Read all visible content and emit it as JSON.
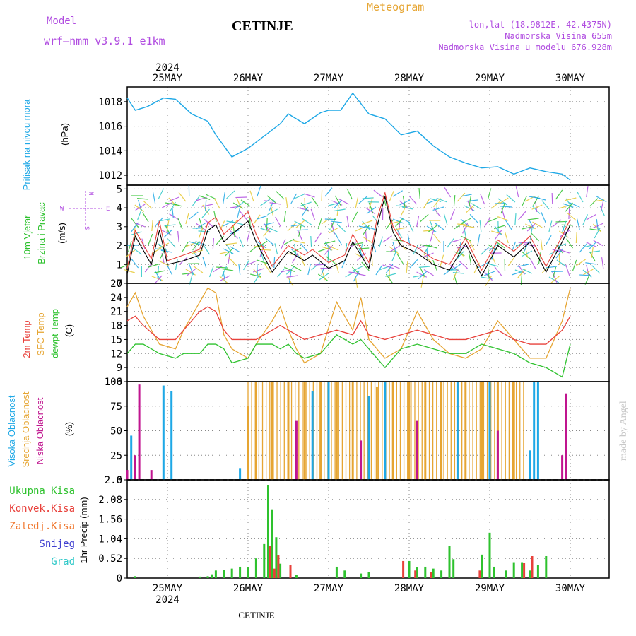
{
  "header": {
    "model_label": "Model",
    "model_name": "wrf–nmm_v3.9.1  e1km",
    "title": "CETINJE",
    "meteogram_label": "Meteogram",
    "coords": "lon,lat (18.9812E, 42.4375N)",
    "elevation": "Nadmorska Visina 655m",
    "model_elevation": "Nadmorska Visina u modelu 676.928m",
    "footer": "CETINJE",
    "watermark": "made by Angel"
  },
  "colors": {
    "pressure": "#1ea8e6",
    "temp2m": "#e8413b",
    "sfc": "#e6a532",
    "dew": "#2ec22e",
    "wind_green": "#2ec22e",
    "low_cloud": "#c0158f",
    "mid_cloud": "#e6a532",
    "high_cloud": "#1ea8e6",
    "precip_total": "#2ec22e",
    "precip_conv": "#e8413b",
    "precip_frozen": "#f07a32",
    "snow": "#4040d0",
    "graupel": "#2ec8c8",
    "purple": "#b04ce0"
  },
  "axes": {
    "year": "2024",
    "days": [
      "25MAY",
      "26MAY",
      "27MAY",
      "28MAY",
      "29MAY",
      "30MAY"
    ]
  },
  "chart_data": [
    {
      "type": "line",
      "panel": "pressure",
      "ylabel_colored": "Pritisak na nivou mora",
      "unit": "(hPa)",
      "yticks": [
        "1012",
        "1014",
        "1016",
        "1018"
      ],
      "ylim": [
        1011.2,
        1019.2
      ],
      "grid": true,
      "x_days": [
        0,
        0.1,
        0.25,
        0.45,
        0.6,
        0.8,
        1.0,
        1.1,
        1.3,
        1.5,
        1.7,
        1.9,
        2.0,
        2.2,
        2.4,
        2.5,
        2.65,
        2.8,
        3.0,
        3.2,
        3.4,
        3.6,
        3.8,
        4.0,
        4.2,
        4.4,
        4.6,
        4.8,
        5.0,
        5.2,
        5.4,
        5.5
      ],
      "series": [
        {
          "values": [
            1018.3,
            1017.3,
            1017.6,
            1018.3,
            1018.2,
            1017.0,
            1016.4,
            1015.3,
            1013.5,
            1014.2,
            1015.2,
            1016.2,
            1017.0,
            1016.2,
            1017.1,
            1017.3,
            1017.3,
            1018.7,
            1017.0,
            1016.6,
            1015.3,
            1015.6,
            1014.4,
            1013.5,
            1013.0,
            1012.6,
            1012.7,
            1012.1,
            1012.6,
            1012.3,
            1012.1,
            1011.6
          ]
        }
      ]
    },
    {
      "type": "line",
      "panel": "wind",
      "ylabel_colored": "10m Vjetar Brzina i Pravac",
      "unit": "(m/s)",
      "compass_labels": [
        "N",
        "E",
        "S",
        "W"
      ],
      "yticks": [
        "0",
        "1",
        "2",
        "3",
        "4",
        "5"
      ],
      "ylim": [
        0,
        5.2
      ],
      "grid": true,
      "x_days": [
        0,
        0.1,
        0.3,
        0.4,
        0.5,
        0.7,
        0.9,
        1.0,
        1.1,
        1.2,
        1.3,
        1.5,
        1.6,
        1.8,
        2.0,
        2.2,
        2.3,
        2.5,
        2.7,
        2.8,
        3.0,
        3.1,
        3.2,
        3.3,
        3.4,
        3.6,
        3.8,
        4.0,
        4.2,
        4.4,
        4.6,
        4.8,
        5.0,
        5.2,
        5.4,
        5.5
      ],
      "series": [
        {
          "name": "Brzina",
          "values": [
            0.5,
            2.5,
            1.0,
            2.8,
            1.0,
            1.2,
            1.5,
            2.8,
            3.1,
            2.2,
            2.6,
            3.3,
            2.2,
            0.6,
            1.7,
            1.2,
            1.5,
            0.8,
            1.2,
            2.2,
            0.8,
            3.0,
            4.6,
            2.7,
            2.0,
            1.6,
            1.0,
            0.7,
            2.1,
            0.4,
            2.0,
            1.4,
            2.2,
            0.6,
            2.2,
            3.1
          ]
        },
        {
          "name": "Udari",
          "values": [
            0.8,
            2.8,
            1.3,
            3.3,
            1.2,
            1.5,
            1.8,
            3.2,
            3.5,
            2.6,
            3.0,
            3.8,
            2.6,
            0.9,
            2.0,
            1.5,
            1.8,
            1.1,
            1.5,
            2.6,
            1.1,
            3.4,
            4.8,
            3.0,
            2.3,
            1.9,
            1.3,
            1.0,
            2.4,
            0.7,
            2.3,
            1.7,
            2.5,
            0.9,
            2.5,
            3.4
          ]
        }
      ]
    },
    {
      "type": "line",
      "panel": "temperature",
      "ylabel_colored": [
        "2m Temp",
        "SFC Temp",
        "dewpt Temp"
      ],
      "unit": "(C)",
      "yticks": [
        "6",
        "9",
        "12",
        "15",
        "18",
        "21",
        "24",
        "27"
      ],
      "ylim": [
        6,
        27
      ],
      "grid": true,
      "x_days": [
        0,
        0.1,
        0.2,
        0.4,
        0.6,
        0.7,
        0.9,
        1.0,
        1.1,
        1.2,
        1.3,
        1.5,
        1.6,
        1.8,
        1.9,
        2.0,
        2.1,
        2.2,
        2.4,
        2.6,
        2.8,
        2.9,
        3.0,
        3.2,
        3.4,
        3.6,
        3.8,
        4.0,
        4.2,
        4.4,
        4.6,
        4.8,
        5.0,
        5.2,
        5.4,
        5.5
      ],
      "series": [
        {
          "name": "2m Temp",
          "values": [
            19,
            20,
            18,
            15,
            15,
            17,
            21,
            22,
            21,
            17,
            15,
            15,
            15,
            17,
            18,
            17,
            16,
            15,
            16,
            17,
            16,
            19,
            16,
            15,
            16,
            17,
            16,
            15,
            15,
            16,
            17,
            15,
            14,
            14,
            17,
            20
          ]
        },
        {
          "name": "SFC Temp",
          "values": [
            22,
            25,
            20,
            14,
            13,
            17,
            23,
            26,
            25,
            16,
            13,
            11,
            14,
            19,
            22,
            17,
            13,
            10,
            12,
            23,
            17,
            24,
            15,
            11,
            13,
            21,
            15,
            12,
            11,
            13,
            19,
            15,
            11,
            11,
            19,
            26
          ]
        },
        {
          "name": "dewpt Temp",
          "values": [
            12,
            14,
            14,
            12,
            11,
            12,
            12,
            14,
            14,
            13,
            10,
            11,
            14,
            14,
            13,
            14,
            12,
            11,
            12,
            16,
            14,
            15,
            13,
            9,
            13,
            14,
            13,
            12,
            12,
            14,
            13,
            12,
            10,
            9,
            7,
            14
          ]
        }
      ]
    },
    {
      "type": "bar",
      "panel": "clouds",
      "ylabel_colored": [
        "Visoka Oblacnost",
        "Srednja Oblacnost",
        "Niska Oblacnost"
      ],
      "unit": "(%)",
      "yticks": [
        "0",
        "25",
        "50",
        "75",
        "100"
      ],
      "ylim": [
        0,
        100
      ],
      "grid": true,
      "series": [
        {
          "name": "Visoka Oblacnost",
          "values": [
            [
              0.05,
              45
            ],
            [
              0.45,
              96
            ],
            [
              0.55,
              90
            ],
            [
              1.4,
              12
            ],
            [
              2.3,
              90
            ],
            [
              2.5,
              100
            ],
            [
              3.0,
              85
            ],
            [
              3.2,
              100
            ],
            [
              4.1,
              100
            ],
            [
              4.5,
              100
            ],
            [
              5.0,
              30
            ],
            [
              5.05,
              100
            ],
            [
              5.1,
              100
            ]
          ]
        },
        {
          "name": "Srednja Oblacnost",
          "values": [
            [
              1.5,
              75
            ],
            [
              1.6,
              100
            ],
            [
              1.8,
              100
            ],
            [
              2.0,
              100
            ],
            [
              2.2,
              100
            ],
            [
              2.4,
              100
            ],
            [
              2.6,
              100
            ],
            [
              2.8,
              100
            ],
            [
              3.1,
              95
            ],
            [
              3.3,
              100
            ],
            [
              3.5,
              100
            ],
            [
              3.7,
              100
            ],
            [
              3.9,
              100
            ],
            [
              4.2,
              100
            ],
            [
              4.4,
              100
            ],
            [
              4.6,
              100
            ],
            [
              4.8,
              100
            ]
          ]
        },
        {
          "name": "Niska Oblacnost",
          "values": [
            [
              0.0,
              10
            ],
            [
              0.1,
              25
            ],
            [
              0.15,
              97
            ],
            [
              0.3,
              10
            ],
            [
              2.1,
              60
            ],
            [
              2.9,
              40
            ],
            [
              3.6,
              60
            ],
            [
              4.6,
              50
            ],
            [
              5.4,
              25
            ],
            [
              5.45,
              88
            ]
          ]
        }
      ]
    },
    {
      "type": "bar",
      "panel": "precip",
      "ylabel": "1hr Precip (mm)",
      "legend": [
        "Ukupna Kisa",
        "Konvek.Kisa",
        "Zaledj.Kisa",
        "Snijeg",
        "Grad"
      ],
      "yticks": [
        "0",
        "0.52",
        "1.04",
        "1.56",
        "2.08",
        "2.6"
      ],
      "ylim": [
        0,
        2.6
      ],
      "grid": true,
      "series": [
        {
          "name": "Ukupna Kisa",
          "values": [
            [
              0.1,
              0.05
            ],
            [
              0.9,
              0.04
            ],
            [
              1.0,
              0.05
            ],
            [
              1.05,
              0.1
            ],
            [
              1.1,
              0.2
            ],
            [
              1.2,
              0.22
            ],
            [
              1.3,
              0.25
            ],
            [
              1.4,
              0.3
            ],
            [
              1.5,
              0.28
            ],
            [
              1.6,
              0.52
            ],
            [
              1.7,
              0.9
            ],
            [
              1.75,
              2.45
            ],
            [
              1.8,
              1.82
            ],
            [
              1.85,
              1.08
            ],
            [
              1.9,
              0.38
            ],
            [
              2.1,
              0.08
            ],
            [
              2.6,
              0.3
            ],
            [
              2.7,
              0.2
            ],
            [
              2.9,
              0.12
            ],
            [
              3.0,
              0.15
            ],
            [
              3.5,
              0.45
            ],
            [
              3.6,
              0.28
            ],
            [
              3.7,
              0.3
            ],
            [
              3.8,
              0.25
            ],
            [
              3.9,
              0.2
            ],
            [
              4.0,
              0.85
            ],
            [
              4.05,
              0.5
            ],
            [
              4.4,
              0.62
            ],
            [
              4.5,
              1.2
            ],
            [
              4.55,
              0.3
            ],
            [
              4.7,
              0.2
            ],
            [
              4.8,
              0.42
            ],
            [
              4.9,
              0.42
            ],
            [
              5.0,
              0.2
            ],
            [
              5.1,
              0.35
            ],
            [
              5.2,
              0.58
            ]
          ]
        },
        {
          "name": "Konvek.Kisa",
          "values": [
            [
              1.75,
              0.85
            ],
            [
              1.8,
              0.25
            ],
            [
              1.85,
              0.6
            ],
            [
              2.0,
              0.35
            ],
            [
              3.4,
              0.45
            ],
            [
              3.55,
              0.2
            ],
            [
              3.75,
              0.15
            ],
            [
              4.35,
              0.2
            ],
            [
              4.9,
              0.4
            ],
            [
              5.0,
              0.58
            ]
          ]
        }
      ]
    }
  ]
}
